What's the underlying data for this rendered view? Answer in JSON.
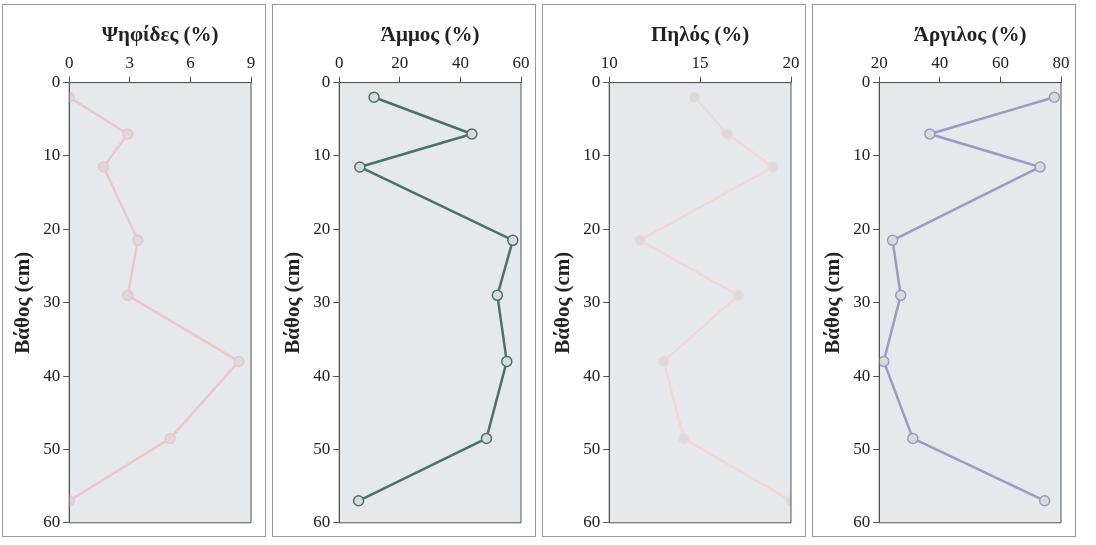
{
  "chart_data": [
    {
      "type": "line",
      "xlabel": "Ψηφίδες (%)",
      "ylabel": "Βάθος (cm)",
      "xlim": [
        0,
        9
      ],
      "xticks": [
        0,
        3,
        6,
        9
      ],
      "ylim": [
        60,
        0
      ],
      "yticks": [
        0,
        10,
        20,
        30,
        40,
        50,
        60
      ],
      "marker": "circle",
      "series": [
        {
          "color": "#f0c4cc",
          "x": [
            0,
            2.9,
            1.7,
            3.4,
            2.9,
            8.4,
            5.0,
            0
          ],
          "values": [
            2,
            7,
            11.5,
            21.5,
            29,
            38,
            48.5,
            57
          ]
        }
      ]
    },
    {
      "type": "line",
      "xlabel": "Άμμος (%)",
      "ylabel": "Βάθος (cm)",
      "xlim": [
        0,
        60
      ],
      "xticks": [
        0,
        20,
        40,
        60
      ],
      "ylim": [
        60,
        0
      ],
      "yticks": [
        0,
        10,
        20,
        30,
        40,
        50,
        60
      ],
      "marker": "circle",
      "series": [
        {
          "color": "#4a7268",
          "x": [
            11.5,
            43.8,
            6.8,
            57.3,
            52.2,
            55.3,
            48.6,
            6.4
          ],
          "values": [
            2,
            7,
            11.5,
            21.5,
            29,
            38,
            48.5,
            57
          ]
        }
      ]
    },
    {
      "type": "line",
      "xlabel": "Πηλός (%)",
      "ylabel": "Βάθος (cm)",
      "xlim": [
        10,
        20
      ],
      "xticks": [
        10,
        15,
        20
      ],
      "ylim": [
        60,
        0
      ],
      "yticks": [
        0,
        10,
        20,
        30,
        40,
        50,
        60
      ],
      "marker": "circle",
      "series": [
        {
          "color": "#f4d6d8",
          "x": [
            14.7,
            16.5,
            19.0,
            11.7,
            17.1,
            13.0,
            14.1,
            20.0
          ],
          "values": [
            2,
            7,
            11.5,
            21.5,
            29,
            38,
            48.5,
            57
          ]
        }
      ]
    },
    {
      "type": "line",
      "xlabel": "Άργιλος (%)",
      "ylabel": "Βάθος (cm)",
      "xlim": [
        20,
        80
      ],
      "xticks": [
        20,
        40,
        60,
        80
      ],
      "ylim": [
        60,
        0
      ],
      "yticks": [
        0,
        10,
        20,
        30,
        40,
        50,
        60
      ],
      "marker": "circle",
      "series": [
        {
          "color": "#9a9ac4",
          "x": [
            77.8,
            36.7,
            73.1,
            24.4,
            27.1,
            21.5,
            31.1,
            74.6
          ],
          "values": [
            2,
            7,
            11.5,
            21.5,
            29,
            38,
            48.5,
            57
          ]
        }
      ]
    }
  ]
}
